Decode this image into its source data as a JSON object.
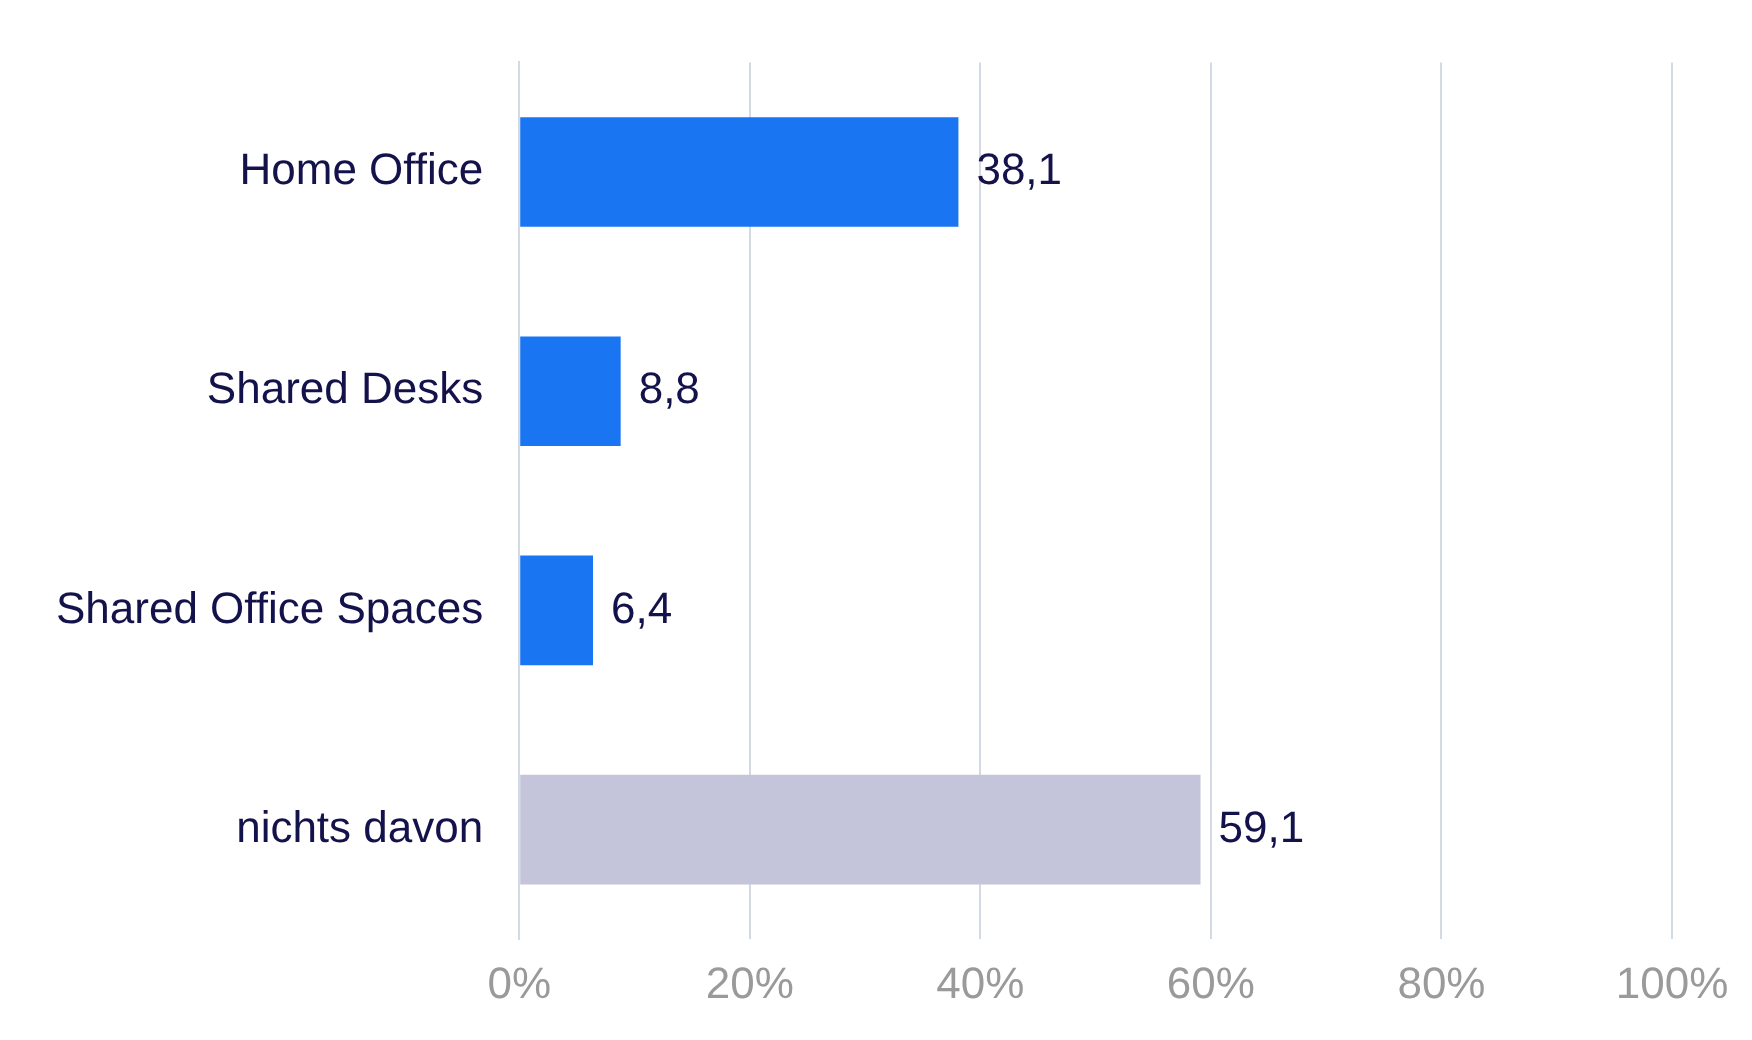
{
  "chart_data": {
    "type": "bar",
    "orientation": "horizontal",
    "categories": [
      "Home Office",
      "Shared Desks",
      "Shared Office Spaces",
      "nichts davon"
    ],
    "values": [
      38.1,
      8.8,
      6.4,
      59.1
    ],
    "colors": [
      "#1a75f2",
      "#1a75f2",
      "#1a75f2",
      "#c4c4da"
    ],
    "value_labels": [
      "38,1",
      "8,8",
      "6,4",
      "59,1"
    ],
    "xlim": [
      0,
      100
    ],
    "xticks": [
      {
        "value": 0,
        "label": "0%"
      },
      {
        "value": 20,
        "label": "20%"
      },
      {
        "value": 40,
        "label": "40%"
      },
      {
        "value": 60,
        "label": "60%"
      },
      {
        "value": 80,
        "label": "80%"
      },
      {
        "value": 100,
        "label": "100%"
      }
    ],
    "grid": "x",
    "legend": false
  }
}
